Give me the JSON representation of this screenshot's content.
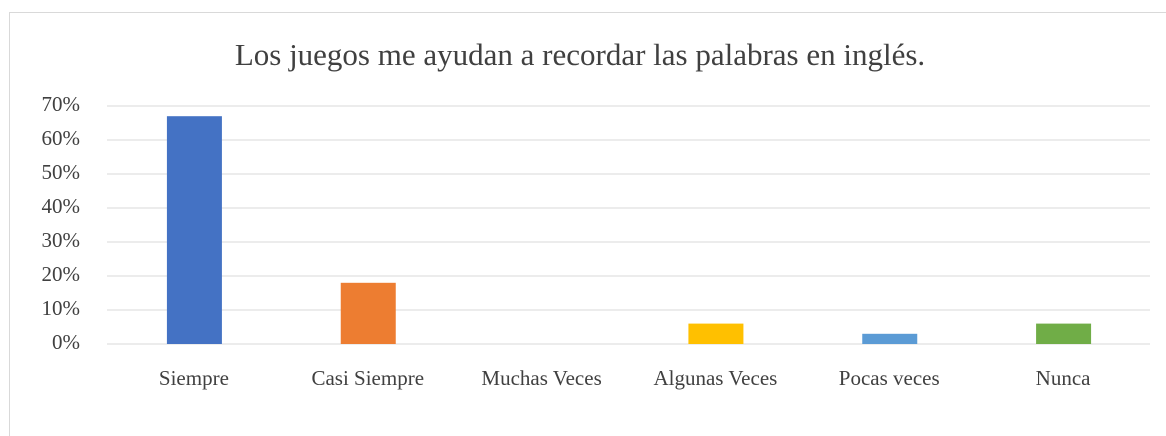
{
  "chart_data": {
    "type": "bar",
    "title": "Los juegos me ayudan a recordar las palabras en inglés.",
    "categories": [
      "Siempre",
      "Casi Siempre",
      "Muchas Veces",
      "Algunas Veces",
      "Pocas veces",
      "Nunca"
    ],
    "values": [
      67,
      18,
      0,
      6,
      3,
      6
    ],
    "colors": [
      "#4472c4",
      "#ed7d31",
      "#a5a5a5",
      "#ffc000",
      "#5b9bd5",
      "#70ad47"
    ],
    "ylim": [
      0,
      70
    ],
    "yticks": [
      {
        "value": 0,
        "label": "0%"
      },
      {
        "value": 10,
        "label": "10%"
      },
      {
        "value": 20,
        "label": "20%"
      },
      {
        "value": 30,
        "label": "30%"
      },
      {
        "value": 40,
        "label": "40%"
      },
      {
        "value": 50,
        "label": "50%"
      },
      {
        "value": 60,
        "label": "60%"
      },
      {
        "value": 70,
        "label": "70%"
      }
    ],
    "grid": true
  }
}
